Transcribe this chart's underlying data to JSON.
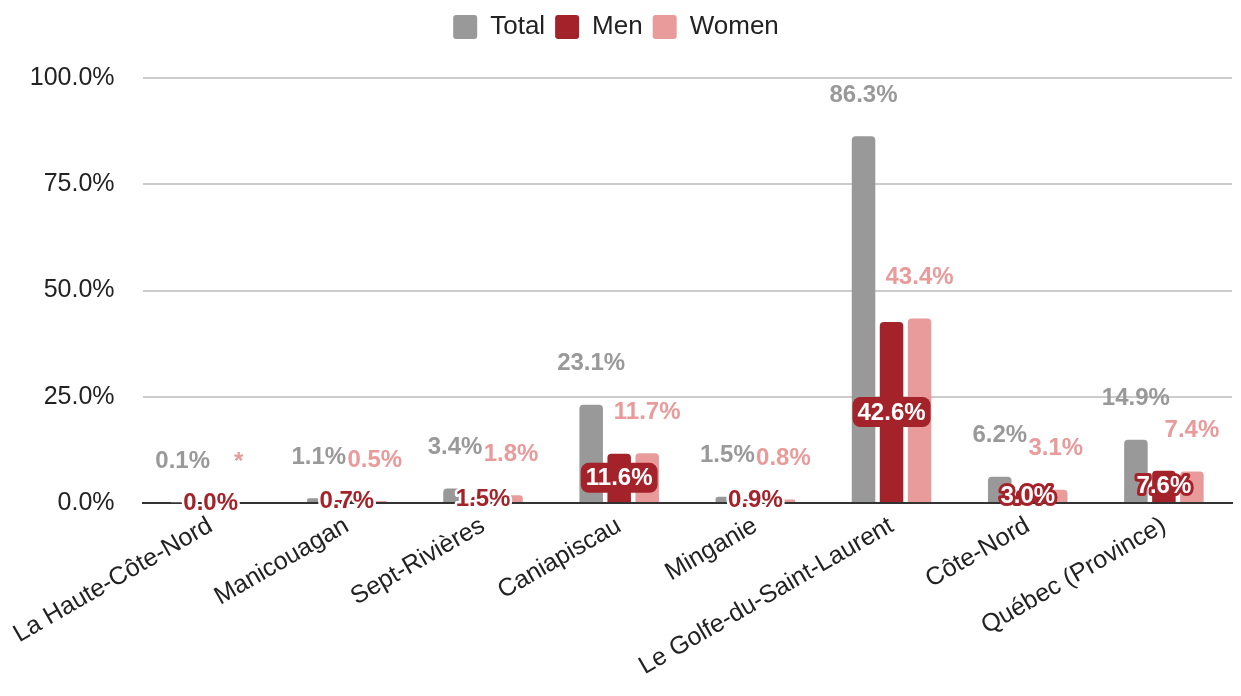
{
  "chart_data": {
    "type": "bar",
    "categories": [
      "La Haute-Côte-Nord",
      "Manicouagan",
      "Sept-Rivières",
      "Caniapiscau",
      "Minganie",
      "Le Golfe-du-Saint-Laurent",
      "Côte-Nord",
      "Québec (Province)"
    ],
    "series": [
      {
        "name": "Total",
        "color": "#999999",
        "values": [
          0.1,
          1.1,
          3.4,
          23.1,
          1.5,
          86.3,
          6.2,
          14.9
        ],
        "value_labels": [
          "0.1%",
          "1.1%",
          "3.4%",
          "23.1%",
          "1.5%",
          "86.3%",
          "6.2%",
          "14.9%"
        ]
      },
      {
        "name": "Men",
        "color": "#a4232a",
        "values": [
          0.0,
          0.7,
          1.5,
          11.6,
          0.9,
          42.6,
          3.0,
          7.6
        ],
        "value_labels": [
          "0.0%",
          "0.7%",
          "1.5%",
          "11.6%",
          "0.9%",
          "42.6%",
          "3.0%",
          "7.6%"
        ]
      },
      {
        "name": "Women",
        "color": "#e99a9b",
        "values": [
          null,
          0.5,
          1.8,
          11.7,
          0.8,
          43.4,
          3.1,
          7.4
        ],
        "value_labels": [
          "*",
          "0.5%",
          "1.8%",
          "11.7%",
          "0.8%",
          "43.4%",
          "3.1%",
          "7.4%"
        ]
      }
    ],
    "ylim": [
      0,
      100
    ],
    "yticks": [
      {
        "value": 0,
        "label": "0.0%"
      },
      {
        "value": 25,
        "label": "25.0%"
      },
      {
        "value": 50,
        "label": "50.0%"
      },
      {
        "value": 75,
        "label": "75.0%"
      },
      {
        "value": 100,
        "label": "100.0%"
      }
    ],
    "grid": "y",
    "legend": "top"
  }
}
